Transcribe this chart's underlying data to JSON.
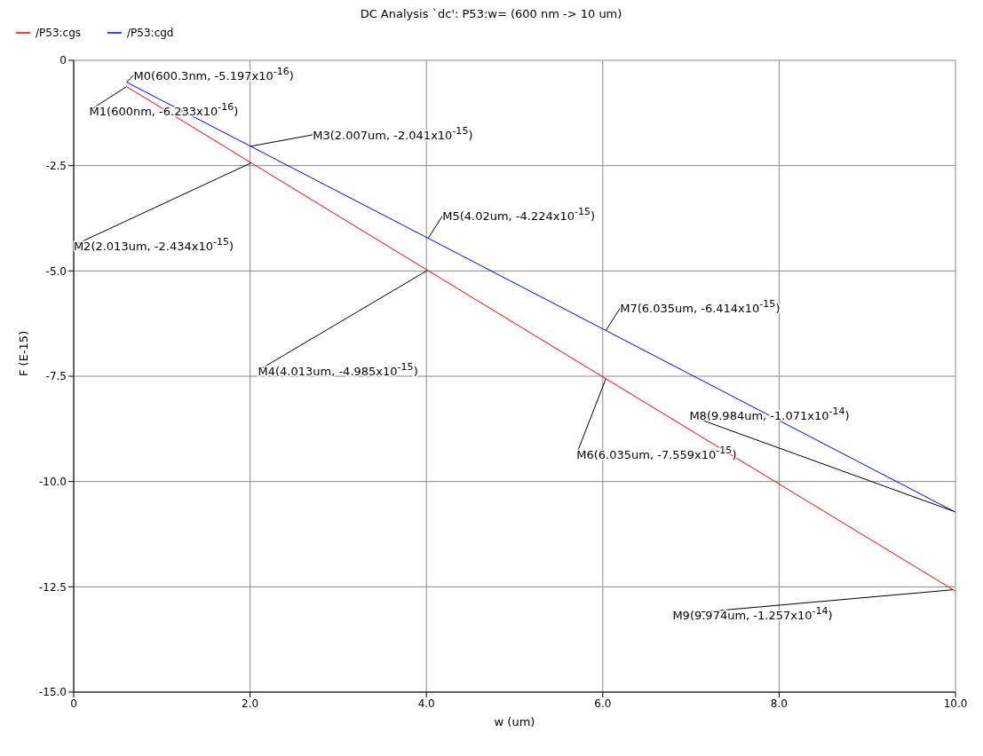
{
  "chart_data": {
    "type": "line",
    "title": "DC Analysis `dc': P53:w= (600 nm -> 10 um)",
    "xlabel": "w (um)",
    "ylabel": "F (E-15)",
    "series": [
      {
        "name": "/P53:cgs",
        "color": "#ff0000",
        "x": [
          0.6,
          2.013,
          4.013,
          6.035,
          9.974,
          10
        ],
        "values": [
          -0.6233,
          -2.434,
          -4.985,
          -7.559,
          -12.57,
          -12.6
        ]
      },
      {
        "name": "/P53:cgd",
        "color": "#0000ff",
        "x": [
          0.6003,
          2.007,
          4.02,
          6.035,
          9.984,
          10
        ],
        "values": [
          -0.5197,
          -2.041,
          -4.224,
          -6.414,
          -10.71,
          -10.73
        ]
      }
    ],
    "xlim": [
      0,
      10
    ],
    "xticks": [
      0,
      {
        "value": 2,
        "label": "2.0"
      },
      {
        "value": 4,
        "label": "4.0"
      },
      {
        "value": 6,
        "label": "6.0"
      },
      {
        "value": 8,
        "label": "8.0"
      },
      {
        "value": 10,
        "label": "10.0"
      }
    ],
    "ylim": [
      -15,
      0
    ],
    "yticks": [
      0,
      -2.5,
      {
        "value": -5,
        "label": "-5.0"
      },
      {
        "value": -7.5,
        "label": "-7.5"
      },
      {
        "value": -10,
        "label": "-10.0"
      },
      {
        "value": -12.5,
        "label": "-12.5"
      },
      {
        "value": -15,
        "label": "-15.0"
      }
    ],
    "grid": true,
    "legend": "top left",
    "marker": "none",
    "line_style": "solid",
    "annotations": [
      {
        "text": "M0(600.3nm, -5.197x10$^{-16}$)",
        "x": 0.6003,
        "y": -0.5197
      },
      {
        "text": "M1(600nm, -6.233x10$^{-16}$)",
        "x": 0.6,
        "y": -0.6233
      },
      {
        "text": "M2(2.013um, -2.434x10$^{-15}$)",
        "x": 2.013,
        "y": -2.434
      },
      {
        "text": "M3(2.007um, -2.041x10$^{-15}$)",
        "x": 2.007,
        "y": -2.041
      },
      {
        "text": "M4(4.013um, -4.985x10$^{-15}$)",
        "x": 4.013,
        "y": -4.985
      },
      {
        "text": "M5(4.02um, -4.224x10$^{-15}$)",
        "x": 4.02,
        "y": -4.224
      },
      {
        "text": "M6(6.035um, -7.559x10$^{-15}$)",
        "x": 6.035,
        "y": -7.559
      },
      {
        "text": "M7(6.035um, -6.414x10$^{-15}$)",
        "x": 6.035,
        "y": -6.414
      },
      {
        "text": "M8(9.984um, -1.071x10$^{-14}$)",
        "x": 9.984,
        "y": -10.71
      },
      {
        "text": "M9(9.974um, -1.257x10$^{-14}$)",
        "x": 9.974,
        "y": -12.57
      }
    ]
  }
}
